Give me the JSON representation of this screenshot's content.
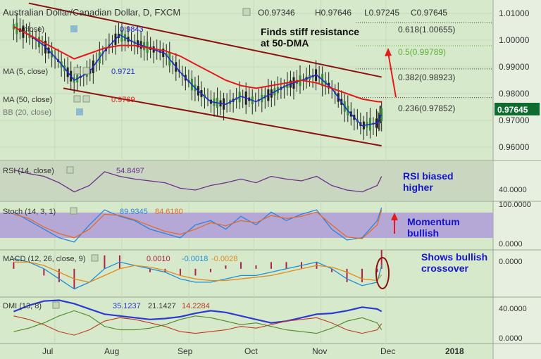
{
  "header": {
    "symbol": "Australian Dollar/Canadian Dollar, D, FXCM",
    "ohlc": [
      "O0.97346",
      "H0.97646",
      "L0.97245",
      "C0.97645"
    ]
  },
  "colors": {
    "background": "#d7e9cb",
    "axis_background": "#eef3ea",
    "price_line": "#1c1cd0",
    "ma5": "#1f2bd6",
    "ma50": "#e41a1a",
    "ma200": "#2c3fd0",
    "channel": "#8c1010",
    "fib": "#3a3a3a",
    "fib_highlight": "#5fae3a",
    "annotation": "#1515c8",
    "arrow": "#e51a1a",
    "rsi": "#6c2f8e",
    "stoch_k": "#2a84e0",
    "stoch_d": "#e56a2a",
    "macd_line": "#1c8fd8",
    "macd_signal": "#e28a1e",
    "macd_hist": "#b0204a",
    "dmi_adx": "#2b3ad0",
    "dmi_plus": "#bf3a22",
    "dmi_minus": "#4c8a2a",
    "last_price_bg": "#0f6b2f",
    "band_fill": "#b5a8d6"
  },
  "price_panel": {
    "indicators": [
      {
        "label": "(close)",
        "value": "0.9843",
        "icon": "eye-icon"
      },
      {
        "label": "MA (5, close)",
        "value": "0.9721"
      },
      {
        "label": "MA (50, close)",
        "value": "0.9769"
      },
      {
        "label": "BB (20, close)",
        "value": ""
      }
    ],
    "y_ticks": [
      "1.01000",
      "1.00000",
      "0.99000",
      "0.98000",
      "0.97000",
      "0.96000"
    ],
    "last_price": "0.97645",
    "fib_levels": [
      {
        "label": "0.618(1.00655)",
        "value": 1.00655
      },
      {
        "label": "0.5(0.99789)",
        "value": 0.99789
      },
      {
        "label": "0.382(0.98923)",
        "value": 0.98923
      },
      {
        "label": "0.236(0.97852)",
        "value": 0.97852
      }
    ],
    "annotation": [
      "Finds stiff resistance",
      "at 50-DMA"
    ]
  },
  "rsi_panel": {
    "label": "RSI (14, close)",
    "value": "54.8497",
    "y_ticks": [
      "40.0000"
    ],
    "annotation": [
      "RSI biased",
      "higher"
    ]
  },
  "stoch_panel": {
    "label": "Stoch (14, 3, 1)",
    "values": [
      "89.9345",
      "84.6180"
    ],
    "y_ticks": [
      "100.0000",
      "0.0000"
    ],
    "annotation": [
      "Momentum",
      "bullish"
    ]
  },
  "macd_panel": {
    "label": "MACD (12, 26, close, 9)",
    "values": [
      "0.0010",
      "-0.0018",
      "-0.0028"
    ],
    "y_ticks": [
      "0.0000"
    ],
    "annotation": [
      "Shows bullish",
      "crossover"
    ]
  },
  "dmi_panel": {
    "label": "DMI (13, 8)",
    "values": [
      "35.1237",
      "21.1427",
      "14.2284"
    ],
    "y_ticks": [
      "40.0000",
      "0.0000"
    ]
  },
  "x_axis": {
    "labels": [
      "Jul",
      "Aug",
      "Sep",
      "Oct",
      "Nov",
      "Dec",
      "2018"
    ]
  },
  "chart_data": {
    "type": "line",
    "x": [
      "2017-06-12",
      "2017-06-19",
      "2017-06-26",
      "2017-07-03",
      "2017-07-10",
      "2017-07-17",
      "2017-07-24",
      "2017-07-31",
      "2017-08-07",
      "2017-08-14",
      "2017-08-21",
      "2017-08-28",
      "2017-09-04",
      "2017-09-11",
      "2017-09-18",
      "2017-09-25",
      "2017-10-02",
      "2017-10-09",
      "2017-10-16",
      "2017-10-23",
      "2017-10-30",
      "2017-11-06",
      "2017-11-13",
      "2017-11-20",
      "2017-11-27",
      "2017-11-29"
    ],
    "series": [
      {
        "name": "MA (5, close)",
        "values": [
          1.005,
          1.002,
          0.998,
          0.992,
          0.985,
          0.988,
          0.996,
          1.002,
          0.999,
          0.997,
          0.995,
          0.988,
          0.982,
          0.977,
          0.976,
          0.979,
          0.977,
          0.98,
          0.983,
          0.985,
          0.987,
          0.982,
          0.974,
          0.968,
          0.969,
          0.9721
        ]
      },
      {
        "name": "MA (50, close)",
        "values": [
          1.005,
          1.002,
          0.999,
          0.996,
          0.993,
          0.995,
          0.997,
          0.998,
          0.998,
          0.997,
          0.996,
          0.994,
          0.991,
          0.988,
          0.985,
          0.983,
          0.982,
          0.983,
          0.984,
          0.985,
          0.984,
          0.982,
          0.98,
          0.978,
          0.977,
          0.9769
        ]
      }
    ],
    "ylim": [
      0.955,
      1.015
    ],
    "channel_upper": [
      [
        "2017-06-19",
        1.0138
      ],
      [
        "2017-11-29",
        0.9862
      ]
    ],
    "channel_lower": [
      [
        "2017-07-05",
        0.982
      ],
      [
        "2017-11-29",
        0.9605
      ]
    ],
    "rsi": [
      62,
      58,
      55,
      48,
      38,
      45,
      60,
      55,
      52,
      50,
      48,
      42,
      40,
      45,
      48,
      52,
      48,
      55,
      52,
      50,
      55,
      45,
      40,
      38,
      45,
      54.8497
    ],
    "rsi_ylim": [
      30,
      70
    ],
    "stoch_k": [
      80,
      60,
      40,
      20,
      10,
      50,
      85,
      70,
      60,
      40,
      30,
      20,
      50,
      60,
      40,
      70,
      50,
      80,
      60,
      75,
      85,
      40,
      15,
      20,
      60,
      89.9345
    ],
    "stoch_d": [
      75,
      65,
      45,
      30,
      20,
      40,
      75,
      72,
      62,
      48,
      35,
      28,
      40,
      55,
      48,
      60,
      55,
      72,
      65,
      70,
      80,
      50,
      22,
      18,
      50,
      84.618
    ],
    "macd": [
      0.003,
      0.002,
      0.0,
      -0.003,
      -0.006,
      -0.004,
      0.0,
      0.002,
      0.001,
      0.0,
      -0.001,
      -0.003,
      -0.004,
      -0.004,
      -0.003,
      -0.002,
      -0.002,
      -0.001,
      0.0,
      0.001,
      0.002,
      0.0,
      -0.003,
      -0.005,
      -0.004,
      0.001
    ],
    "macd_signal": [
      0.002,
      0.002,
      0.001,
      -0.001,
      -0.003,
      -0.004,
      -0.002,
      0.0,
      0.001,
      0.0005,
      -0.0005,
      -0.002,
      -0.003,
      -0.0035,
      -0.0035,
      -0.003,
      -0.0025,
      -0.002,
      -0.001,
      0.0,
      0.001,
      0.0005,
      -0.001,
      -0.003,
      -0.0035,
      -0.0018
    ],
    "macd_ylim": [
      -0.008,
      0.005
    ],
    "adx": [
      35,
      42,
      47,
      48,
      44,
      38,
      32,
      30,
      28,
      26,
      27,
      29,
      33,
      36,
      34,
      30,
      26,
      22,
      24,
      28,
      32,
      33,
      36,
      40,
      38,
      35.1237
    ],
    "di_plus": [
      30,
      26,
      20,
      12,
      8,
      14,
      24,
      28,
      26,
      22,
      18,
      12,
      10,
      12,
      14,
      18,
      16,
      20,
      24,
      26,
      28,
      22,
      14,
      10,
      14,
      21.1427
    ],
    "di_minus": [
      12,
      16,
      22,
      30,
      36,
      30,
      18,
      14,
      14,
      16,
      20,
      26,
      30,
      28,
      24,
      20,
      22,
      18,
      14,
      12,
      10,
      16,
      24,
      28,
      22,
      14.2284
    ],
    "dmi_ylim": [
      0,
      50
    ]
  }
}
